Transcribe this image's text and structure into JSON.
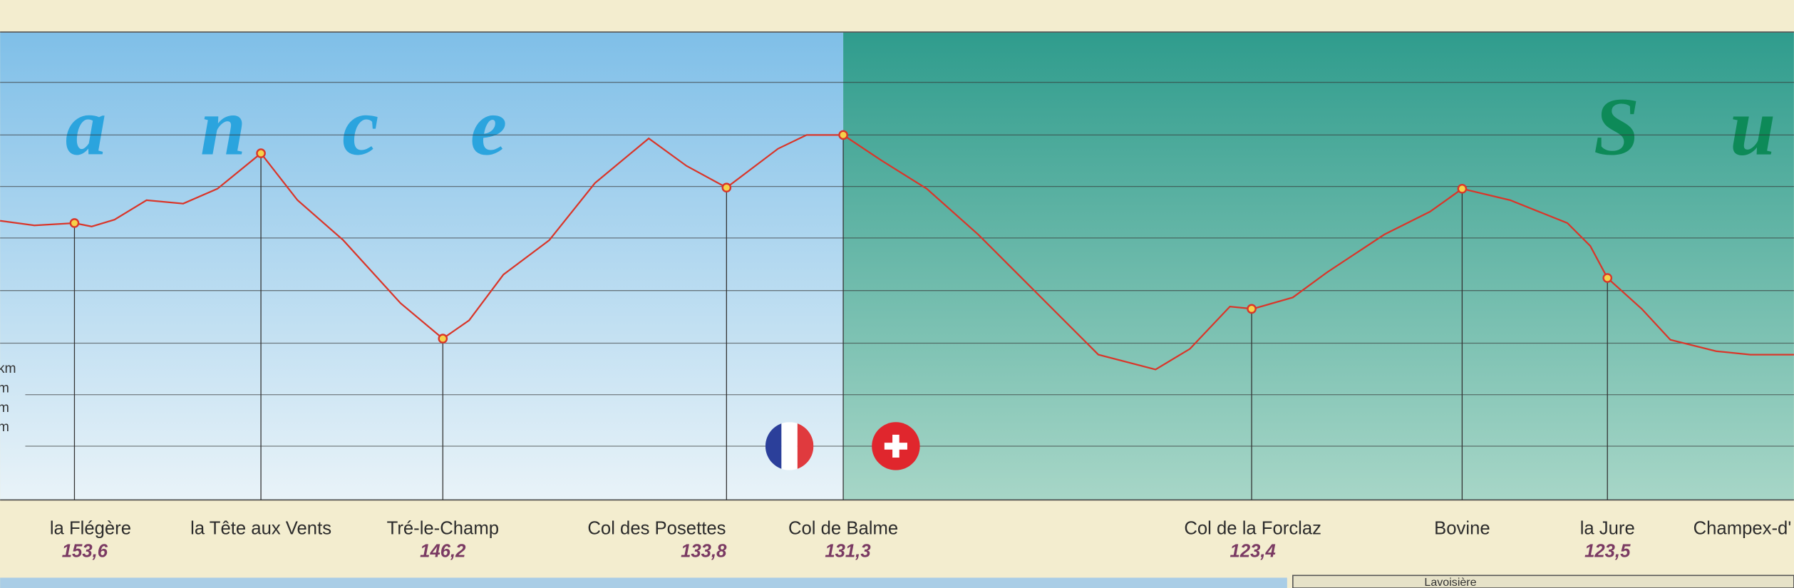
{
  "background_letters": {
    "france": [
      "a",
      "n",
      "c",
      "e"
    ],
    "suisse": [
      "S",
      "u"
    ]
  },
  "axis_units": [
    "km",
    "m",
    "m",
    "m"
  ],
  "waypoints": [
    {
      "name": "la Flégère",
      "km": "153,6"
    },
    {
      "name": "la Tête aux Vents",
      "km": null
    },
    {
      "name": "Tré-le-Champ",
      "km": "146,2"
    },
    {
      "name": "Col des Posettes",
      "km": "133,8"
    },
    {
      "name": "Col de Balme",
      "km": "131,3"
    },
    {
      "name": "Col de  la Forclaz",
      "km": "123,4"
    },
    {
      "name": "Bovine",
      "km": null
    },
    {
      "name": "la Jure",
      "km": "123,5"
    },
    {
      "name": "Champex-d'",
      "km": null
    }
  ],
  "map_fragment": "Lavoisière"
}
